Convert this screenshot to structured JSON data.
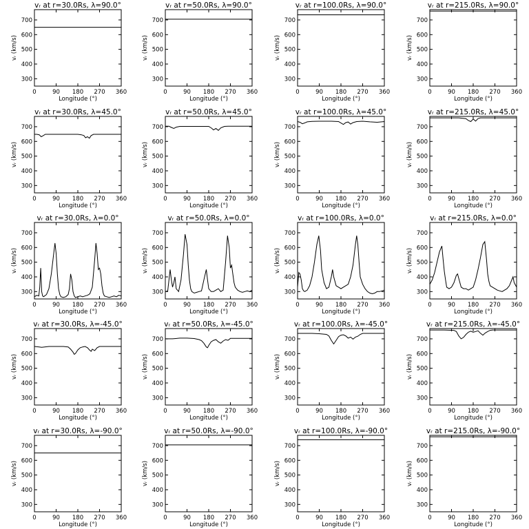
{
  "chart_data": [
    {
      "type": "line",
      "title": "vᵣ at r=30.0Rs, λ=90.0°",
      "xlabel": "Longitude (°)",
      "ylabel": "vᵣ (km/s)",
      "xlim": [
        0,
        360
      ],
      "ylim": [
        250,
        770
      ],
      "xticks": [
        0,
        90,
        180,
        270,
        360
      ],
      "yticks": [
        300,
        400,
        500,
        600,
        700
      ],
      "x": [
        0,
        360
      ],
      "values": [
        650,
        650
      ]
    },
    {
      "type": "line",
      "title": "vᵣ at r=50.0Rs, λ=90.0°",
      "xlabel": "Longitude (°)",
      "ylabel": "vᵣ (km/s)",
      "xlim": [
        0,
        360
      ],
      "ylim": [
        250,
        770
      ],
      "xticks": [
        0,
        90,
        180,
        270,
        360
      ],
      "yticks": [
        300,
        400,
        500,
        600,
        700
      ],
      "x": [
        0,
        360
      ],
      "values": [
        705,
        705
      ]
    },
    {
      "type": "line",
      "title": "vᵣ at r=100.0Rs, λ=90.0°",
      "xlabel": "Longitude (°)",
      "ylabel": "vᵣ (km/s)",
      "xlim": [
        0,
        360
      ],
      "ylim": [
        250,
        770
      ],
      "xticks": [
        0,
        90,
        180,
        270,
        360
      ],
      "yticks": [
        300,
        400,
        500,
        600,
        700
      ],
      "x": [
        0,
        360
      ],
      "values": [
        735,
        735
      ]
    },
    {
      "type": "line",
      "title": "vᵣ at r=215.0Rs, λ=90.0°",
      "xlabel": "Longitude (°)",
      "ylabel": "vᵣ (km/s)",
      "xlim": [
        0,
        360
      ],
      "ylim": [
        250,
        770
      ],
      "xticks": [
        0,
        90,
        180,
        270,
        360
      ],
      "yticks": [
        300,
        400,
        500,
        600,
        700
      ],
      "x": [
        0,
        360
      ],
      "values": [
        760,
        760
      ]
    },
    {
      "type": "line",
      "title": "vᵣ at r=30.0Rs, λ=45.0°",
      "xlabel": "Longitude (°)",
      "ylabel": "vᵣ (km/s)",
      "xlim": [
        0,
        360
      ],
      "ylim": [
        250,
        770
      ],
      "xticks": [
        0,
        90,
        180,
        270,
        360
      ],
      "yticks": [
        300,
        400,
        500,
        600,
        700
      ],
      "x": [
        0,
        10,
        20,
        28,
        35,
        45,
        60,
        120,
        180,
        195,
        205,
        212,
        220,
        228,
        235,
        245,
        360
      ],
      "values": [
        648,
        648,
        645,
        632,
        638,
        648,
        648,
        648,
        648,
        645,
        640,
        625,
        632,
        622,
        640,
        648,
        648
      ]
    },
    {
      "type": "line",
      "title": "vᵣ at r=50.0Rs, λ=45.0°",
      "xlabel": "Longitude (°)",
      "ylabel": "vᵣ (km/s)",
      "xlim": [
        0,
        360
      ],
      "ylim": [
        250,
        770
      ],
      "xticks": [
        0,
        90,
        180,
        270,
        360
      ],
      "yticks": [
        300,
        400,
        500,
        600,
        700
      ],
      "x": [
        0,
        15,
        25,
        35,
        45,
        60,
        120,
        180,
        192,
        200,
        210,
        220,
        230,
        245,
        260,
        360
      ],
      "values": [
        703,
        703,
        695,
        688,
        697,
        702,
        702,
        702,
        690,
        678,
        688,
        675,
        692,
        702,
        703,
        703
      ]
    },
    {
      "type": "line",
      "title": "vᵣ at r=100.0Rs, λ=45.0°",
      "xlabel": "Longitude (°)",
      "ylabel": "vᵣ (km/s)",
      "xlim": [
        0,
        360
      ],
      "ylim": [
        250,
        770
      ],
      "xticks": [
        0,
        90,
        180,
        270,
        360
      ],
      "yticks": [
        300,
        400,
        500,
        600,
        700
      ],
      "x": [
        0,
        10,
        20,
        30,
        40,
        60,
        90,
        140,
        170,
        180,
        190,
        200,
        210,
        220,
        230,
        245,
        270,
        300,
        330,
        360
      ],
      "values": [
        735,
        730,
        720,
        726,
        733,
        736,
        737,
        737,
        735,
        725,
        715,
        728,
        732,
        718,
        728,
        735,
        737,
        733,
        730,
        735
      ]
    },
    {
      "type": "line",
      "title": "vᵣ at r=215.0Rs, λ=45.0°",
      "xlabel": "Longitude (°)",
      "ylabel": "vᵣ (km/s)",
      "xlim": [
        0,
        360
      ],
      "ylim": [
        250,
        770
      ],
      "xticks": [
        0,
        90,
        180,
        270,
        360
      ],
      "yticks": [
        300,
        400,
        500,
        600,
        700
      ],
      "x": [
        0,
        60,
        120,
        150,
        160,
        170,
        180,
        190,
        200,
        210,
        360
      ],
      "values": [
        760,
        760,
        760,
        755,
        742,
        735,
        752,
        738,
        755,
        760,
        760
      ]
    },
    {
      "type": "line",
      "title": "vᵣ at r=30.0Rs, λ=0.0°",
      "xlabel": "Longitude (°)",
      "ylabel": "vᵣ (km/s)",
      "xlim": [
        0,
        360
      ],
      "ylim": [
        250,
        770
      ],
      "xticks": [
        0,
        90,
        180,
        270,
        360
      ],
      "yticks": [
        300,
        400,
        500,
        600,
        700
      ],
      "x": [
        0,
        10,
        18,
        22,
        26,
        30,
        34,
        38,
        42,
        50,
        60,
        70,
        80,
        85,
        90,
        95,
        100,
        105,
        110,
        120,
        130,
        140,
        145,
        150,
        155,
        160,
        165,
        170,
        180,
        190,
        200,
        210,
        220,
        230,
        240,
        250,
        255,
        260,
        265,
        270,
        275,
        280,
        285,
        290,
        300,
        310,
        320,
        330,
        340,
        350,
        360
      ],
      "values": [
        265,
        275,
        270,
        330,
        460,
        300,
        270,
        265,
        270,
        280,
        320,
        420,
        560,
        630,
        560,
        420,
        320,
        280,
        265,
        260,
        265,
        280,
        320,
        420,
        380,
        300,
        270,
        260,
        265,
        270,
        265,
        270,
        275,
        285,
        330,
        520,
        630,
        560,
        450,
        460,
        420,
        340,
        290,
        270,
        265,
        260,
        265,
        270,
        265,
        275,
        270
      ]
    },
    {
      "type": "line",
      "title": "vᵣ at r=50.0Rs, λ=0.0°",
      "xlabel": "Longitude (°)",
      "ylabel": "vᵣ (km/s)",
      "xlim": [
        0,
        360
      ],
      "ylim": [
        250,
        770
      ],
      "xticks": [
        0,
        90,
        180,
        270,
        360
      ],
      "yticks": [
        300,
        400,
        500,
        600,
        700
      ],
      "x": [
        0,
        10,
        20,
        25,
        30,
        35,
        40,
        45,
        55,
        65,
        75,
        82,
        90,
        95,
        100,
        105,
        110,
        120,
        130,
        140,
        150,
        160,
        170,
        175,
        180,
        190,
        200,
        210,
        220,
        230,
        240,
        250,
        258,
        265,
        270,
        275,
        280,
        285,
        290,
        300,
        310,
        320,
        330,
        340,
        350,
        360
      ],
      "values": [
        300,
        305,
        450,
        380,
        330,
        360,
        400,
        320,
        300,
        380,
        550,
        690,
        620,
        480,
        380,
        320,
        300,
        290,
        295,
        300,
        305,
        380,
        450,
        380,
        320,
        300,
        300,
        310,
        320,
        300,
        310,
        500,
        680,
        600,
        460,
        480,
        420,
        360,
        330,
        310,
        300,
        295,
        300,
        305,
        300,
        310
      ]
    },
    {
      "type": "line",
      "title": "vᵣ at r=100.0Rs, λ=0.0°",
      "xlabel": "Longitude (°)",
      "ylabel": "vᵣ (km/s)",
      "xlim": [
        0,
        360
      ],
      "ylim": [
        250,
        770
      ],
      "xticks": [
        0,
        90,
        180,
        270,
        360
      ],
      "yticks": [
        300,
        400,
        500,
        600,
        700
      ],
      "x": [
        0,
        5,
        10,
        15,
        20,
        25,
        30,
        40,
        50,
        60,
        70,
        80,
        88,
        95,
        100,
        110,
        120,
        130,
        140,
        145,
        150,
        160,
        170,
        180,
        190,
        200,
        210,
        220,
        230,
        240,
        245,
        250,
        255,
        260,
        270,
        280,
        290,
        300,
        310,
        320,
        330,
        340,
        350,
        360
      ],
      "values": [
        330,
        430,
        420,
        380,
        320,
        305,
        300,
        310,
        340,
        400,
        500,
        620,
        680,
        580,
        450,
        360,
        320,
        330,
        400,
        450,
        400,
        340,
        330,
        320,
        330,
        340,
        350,
        400,
        480,
        620,
        680,
        620,
        500,
        400,
        350,
        320,
        300,
        290,
        285,
        290,
        300,
        300,
        305,
        310
      ]
    },
    {
      "type": "line",
      "title": "vᵣ at r=215.0Rs, λ=0.0°",
      "xlabel": "Longitude (°)",
      "ylabel": "vᵣ (km/s)",
      "xlim": [
        0,
        360
      ],
      "ylim": [
        250,
        770
      ],
      "xticks": [
        0,
        90,
        180,
        270,
        360
      ],
      "yticks": [
        300,
        400,
        500,
        600,
        700
      ],
      "x": [
        0,
        10,
        20,
        30,
        40,
        50,
        55,
        60,
        65,
        70,
        80,
        90,
        100,
        110,
        115,
        120,
        130,
        140,
        150,
        160,
        170,
        180,
        190,
        200,
        210,
        220,
        228,
        235,
        240,
        245,
        250,
        260,
        270,
        280,
        290,
        300,
        310,
        320,
        330,
        340,
        345,
        350,
        360
      ],
      "values": [
        350,
        380,
        430,
        500,
        570,
        610,
        520,
        440,
        380,
        330,
        320,
        330,
        360,
        410,
        420,
        390,
        330,
        320,
        320,
        310,
        320,
        330,
        380,
        450,
        530,
        620,
        640,
        520,
        420,
        370,
        340,
        330,
        320,
        310,
        305,
        300,
        310,
        320,
        340,
        380,
        400,
        360,
        330
      ]
    },
    {
      "type": "line",
      "title": "vᵣ at r=30.0Rs, λ=-45.0°",
      "xlabel": "Longitude (°)",
      "ylabel": "vᵣ (km/s)",
      "xlim": [
        0,
        360
      ],
      "ylim": [
        250,
        770
      ],
      "xticks": [
        0,
        90,
        180,
        270,
        360
      ],
      "yticks": [
        300,
        400,
        500,
        600,
        700
      ],
      "x": [
        0,
        20,
        30,
        60,
        120,
        140,
        150,
        160,
        165,
        170,
        180,
        190,
        200,
        210,
        220,
        228,
        235,
        240,
        250,
        260,
        270,
        360
      ],
      "values": [
        648,
        645,
        642,
        648,
        648,
        645,
        630,
        610,
        595,
        600,
        625,
        640,
        645,
        648,
        640,
        625,
        615,
        630,
        620,
        640,
        648,
        648
      ]
    },
    {
      "type": "line",
      "title": "vᵣ at r=50.0Rs, λ=-45.0°",
      "xlabel": "Longitude (°)",
      "ylabel": "vᵣ (km/s)",
      "xlim": [
        0,
        360
      ],
      "ylim": [
        250,
        770
      ],
      "xticks": [
        0,
        90,
        180,
        270,
        360
      ],
      "yticks": [
        300,
        400,
        500,
        600,
        700
      ],
      "x": [
        0,
        30,
        60,
        90,
        120,
        140,
        150,
        160,
        170,
        175,
        180,
        190,
        200,
        210,
        220,
        230,
        240,
        250,
        260,
        270,
        360
      ],
      "values": [
        700,
        700,
        705,
        705,
        702,
        695,
        688,
        670,
        645,
        640,
        655,
        680,
        690,
        695,
        680,
        670,
        685,
        695,
        690,
        703,
        703
      ]
    },
    {
      "type": "line",
      "title": "vᵣ at r=100.0Rs, λ=-45.0°",
      "xlabel": "Longitude (°)",
      "ylabel": "vᵣ (km/s)",
      "xlim": [
        0,
        360
      ],
      "ylim": [
        250,
        770
      ],
      "xticks": [
        0,
        90,
        180,
        270,
        360
      ],
      "yticks": [
        300,
        400,
        500,
        600,
        700
      ],
      "x": [
        0,
        60,
        90,
        120,
        130,
        140,
        150,
        160,
        170,
        180,
        190,
        200,
        210,
        220,
        230,
        240,
        250,
        260,
        270,
        360
      ],
      "values": [
        737,
        737,
        735,
        730,
        720,
        690,
        665,
        690,
        715,
        725,
        728,
        720,
        705,
        712,
        698,
        712,
        718,
        730,
        737,
        737
      ]
    },
    {
      "type": "line",
      "title": "vᵣ at r=215.0Rs, λ=-45.0°",
      "xlabel": "Longitude (°)",
      "ylabel": "vᵣ (km/s)",
      "xlim": [
        0,
        360
      ],
      "ylim": [
        250,
        770
      ],
      "xticks": [
        0,
        90,
        180,
        270,
        360
      ],
      "yticks": [
        300,
        400,
        500,
        600,
        700
      ],
      "x": [
        0,
        60,
        100,
        110,
        120,
        130,
        140,
        150,
        160,
        170,
        180,
        190,
        200,
        210,
        220,
        230,
        240,
        250,
        260,
        360
      ],
      "values": [
        760,
        760,
        758,
        750,
        720,
        700,
        710,
        730,
        745,
        752,
        745,
        750,
        755,
        738,
        725,
        740,
        750,
        758,
        760,
        760
      ]
    },
    {
      "type": "line",
      "title": "vᵣ at r=30.0Rs, λ=-90.0°",
      "xlabel": "Longitude (°)",
      "ylabel": "vᵣ (km/s)",
      "xlim": [
        0,
        360
      ],
      "ylim": [
        250,
        770
      ],
      "xticks": [
        0,
        90,
        180,
        270,
        360
      ],
      "yticks": [
        300,
        400,
        500,
        600,
        700
      ],
      "x": [
        0,
        360
      ],
      "values": [
        650,
        650
      ]
    },
    {
      "type": "line",
      "title": "vᵣ at r=50.0Rs, λ=-90.0°",
      "xlabel": "Longitude (°)",
      "ylabel": "vᵣ (km/s)",
      "xlim": [
        0,
        360
      ],
      "ylim": [
        250,
        770
      ],
      "xticks": [
        0,
        90,
        180,
        270,
        360
      ],
      "yticks": [
        300,
        400,
        500,
        600,
        700
      ],
      "x": [
        0,
        360
      ],
      "values": [
        705,
        705
      ]
    },
    {
      "type": "line",
      "title": "vᵣ at r=100.0Rs, λ=-90.0°",
      "xlabel": "Longitude (°)",
      "ylabel": "vᵣ (km/s)",
      "xlim": [
        0,
        360
      ],
      "ylim": [
        250,
        770
      ],
      "xticks": [
        0,
        90,
        180,
        270,
        360
      ],
      "yticks": [
        300,
        400,
        500,
        600,
        700
      ],
      "x": [
        0,
        360
      ],
      "values": [
        740,
        740
      ]
    },
    {
      "type": "line",
      "title": "vᵣ at r=215.0Rs, λ=-90.0°",
      "xlabel": "Longitude (°)",
      "ylabel": "vᵣ (km/s)",
      "xlim": [
        0,
        360
      ],
      "ylim": [
        250,
        770
      ],
      "xticks": [
        0,
        90,
        180,
        270,
        360
      ],
      "yticks": [
        300,
        400,
        500,
        600,
        700
      ],
      "x": [
        0,
        360
      ],
      "values": [
        760,
        760
      ]
    }
  ]
}
